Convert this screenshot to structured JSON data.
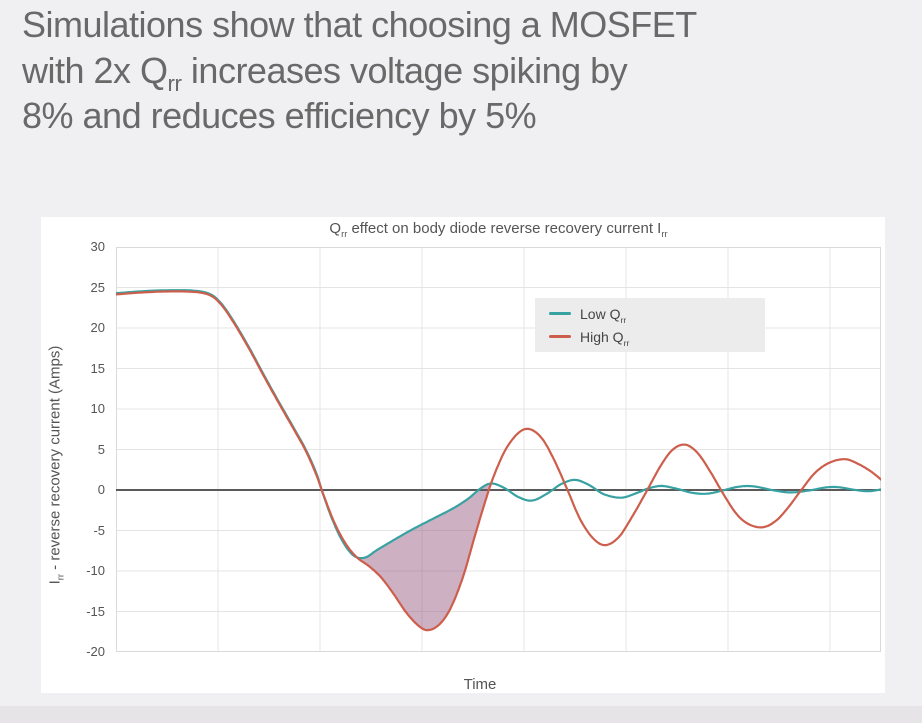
{
  "heading": {
    "line1": "Simulations show that choosing a MOSFET",
    "line2_pre": "with 2x Q",
    "line2_sub": "rr",
    "line2_post": " increases voltage spiking by",
    "line3": "8% and reduces efficiency by 5%"
  },
  "chart_data": {
    "type": "line",
    "title": {
      "pre": "Q",
      "sub1": "rr",
      "mid": " effect on body diode reverse recovery current I",
      "sub2": "rr"
    },
    "xlabel": "Time",
    "ylabel": {
      "pre": "I",
      "sub": "rr",
      "post": " - reverse recovery current (Amps)"
    },
    "ylim": [
      -20,
      30
    ],
    "yticks": [
      30,
      25,
      20,
      15,
      10,
      5,
      0,
      -5,
      -10,
      -15,
      -20
    ],
    "xlim": [
      0,
      7.5
    ],
    "x_gridlines": [
      0,
      1,
      2,
      3,
      4,
      5,
      6,
      7,
      7.5
    ],
    "xticklabels": [],
    "grid": true,
    "legend": {
      "position": "upper-right-inside",
      "items": [
        {
          "label_pre": "Low Q",
          "label_sub": "rr",
          "color": "#38a1a2"
        },
        {
          "label_pre": "High Q",
          "label_sub": "rr",
          "color": "#cd5e4b"
        }
      ]
    },
    "series": [
      {
        "name": "Low Qrr",
        "color": "#38a1a2",
        "points": [
          [
            0,
            24.3
          ],
          [
            0.35,
            24.6
          ],
          [
            0.7,
            24.65
          ],
          [
            0.9,
            24.3
          ],
          [
            1.02,
            23.2
          ],
          [
            1.15,
            20.9
          ],
          [
            1.3,
            17.7
          ],
          [
            1.45,
            14.2
          ],
          [
            1.6,
            10.8
          ],
          [
            1.75,
            7.5
          ],
          [
            1.86,
            5.0
          ],
          [
            1.96,
            2.2
          ],
          [
            2.03,
            -0.5
          ],
          [
            2.12,
            -3.6
          ],
          [
            2.22,
            -6.3
          ],
          [
            2.33,
            -8.1
          ],
          [
            2.44,
            -8.35
          ],
          [
            2.56,
            -7.4
          ],
          [
            2.72,
            -6.2
          ],
          [
            2.9,
            -4.9
          ],
          [
            3.1,
            -3.6
          ],
          [
            3.3,
            -2.3
          ],
          [
            3.45,
            -1.1
          ],
          [
            3.58,
            0.25
          ],
          [
            3.68,
            0.8
          ],
          [
            3.8,
            0.3
          ],
          [
            3.95,
            -0.9
          ],
          [
            4.08,
            -1.3
          ],
          [
            4.22,
            -0.5
          ],
          [
            4.36,
            0.7
          ],
          [
            4.5,
            1.25
          ],
          [
            4.64,
            0.6
          ],
          [
            4.78,
            -0.5
          ],
          [
            4.95,
            -0.95
          ],
          [
            5.1,
            -0.4
          ],
          [
            5.22,
            0.2
          ],
          [
            5.35,
            0.5
          ],
          [
            5.5,
            0.15
          ],
          [
            5.65,
            -0.35
          ],
          [
            5.8,
            -0.45
          ],
          [
            5.95,
            -0.05
          ],
          [
            6.1,
            0.4
          ],
          [
            6.25,
            0.45
          ],
          [
            6.45,
            -0.05
          ],
          [
            6.62,
            -0.3
          ],
          [
            6.8,
            -0.05
          ],
          [
            6.95,
            0.3
          ],
          [
            7.08,
            0.35
          ],
          [
            7.25,
            0.0
          ],
          [
            7.38,
            -0.15
          ],
          [
            7.5,
            0.08
          ]
        ]
      },
      {
        "name": "High Qrr",
        "color": "#cd5e4b",
        "points": [
          [
            0,
            24.15
          ],
          [
            0.35,
            24.45
          ],
          [
            0.7,
            24.5
          ],
          [
            0.9,
            24.15
          ],
          [
            1.02,
            23.05
          ],
          [
            1.15,
            20.75
          ],
          [
            1.3,
            17.55
          ],
          [
            1.45,
            14.05
          ],
          [
            1.6,
            10.65
          ],
          [
            1.75,
            7.35
          ],
          [
            1.86,
            4.85
          ],
          [
            1.96,
            2.0
          ],
          [
            2.04,
            -0.8
          ],
          [
            2.14,
            -4.0
          ],
          [
            2.25,
            -6.6
          ],
          [
            2.36,
            -8.3
          ],
          [
            2.48,
            -9.4
          ],
          [
            2.6,
            -10.8
          ],
          [
            2.72,
            -12.8
          ],
          [
            2.85,
            -15.2
          ],
          [
            2.97,
            -16.8
          ],
          [
            3.06,
            -17.3
          ],
          [
            3.17,
            -16.6
          ],
          [
            3.28,
            -14.6
          ],
          [
            3.4,
            -10.8
          ],
          [
            3.52,
            -5.6
          ],
          [
            3.62,
            -1.4
          ],
          [
            3.7,
            1.6
          ],
          [
            3.82,
            5.0
          ],
          [
            3.95,
            7.1
          ],
          [
            4.06,
            7.5
          ],
          [
            4.18,
            6.3
          ],
          [
            4.3,
            3.6
          ],
          [
            4.42,
            0.2
          ],
          [
            4.55,
            -3.6
          ],
          [
            4.68,
            -6.0
          ],
          [
            4.8,
            -6.8
          ],
          [
            4.93,
            -5.8
          ],
          [
            5.06,
            -3.3
          ],
          [
            5.2,
            -0.2
          ],
          [
            5.34,
            3.0
          ],
          [
            5.46,
            5.0
          ],
          [
            5.58,
            5.6
          ],
          [
            5.7,
            4.6
          ],
          [
            5.82,
            2.4
          ],
          [
            5.95,
            -0.4
          ],
          [
            6.08,
            -2.9
          ],
          [
            6.2,
            -4.2
          ],
          [
            6.34,
            -4.6
          ],
          [
            6.47,
            -3.8
          ],
          [
            6.6,
            -2.0
          ],
          [
            6.73,
            0.2
          ],
          [
            6.86,
            2.2
          ],
          [
            7.0,
            3.4
          ],
          [
            7.15,
            3.8
          ],
          [
            7.28,
            3.2
          ],
          [
            7.4,
            2.3
          ],
          [
            7.5,
            1.3
          ]
        ]
      }
    ],
    "shaded_region": {
      "between": [
        "Low Qrr",
        "High Qrr"
      ],
      "t_range": [
        2.36,
        3.67
      ],
      "color": "rgba(160,105,140,0.52)",
      "meaning": "extra reverse recovery charge of High Qrr device"
    },
    "colors": {
      "plot_bg": "#ffffff",
      "page_bg": "#f0eff1",
      "grid": "#e4e4e4",
      "plot_border": "#d9d9d9",
      "zero_line": "#5a5a5a",
      "text": "#555555",
      "heading_text": "#696969",
      "legend_bg": "#ececec"
    }
  }
}
